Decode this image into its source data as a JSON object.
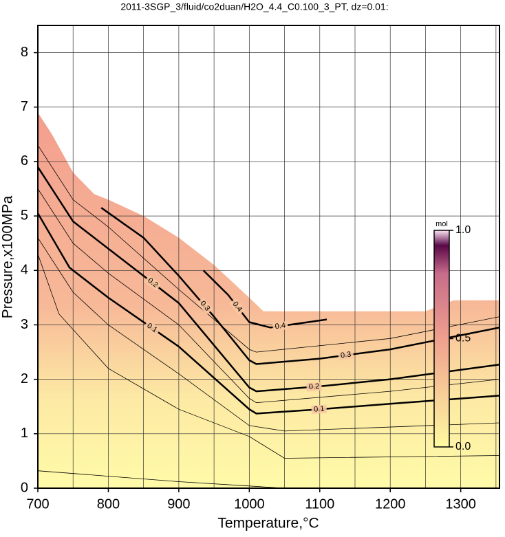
{
  "chart_data": {
    "type": "contour",
    "title": "2011-3SGP_3/fluid/co2duan/H2O_4.4_C0.100_3_PT, dz=0.01:",
    "xlabel": "Temperature,°C",
    "ylabel": "Pressure,x100MPa",
    "xlim": [
      700,
      1355
    ],
    "ylim": [
      0,
      8.5
    ],
    "xticks": [
      700,
      800,
      900,
      1000,
      1100,
      1200,
      1300
    ],
    "yticks": [
      0,
      1,
      2,
      3,
      4,
      5,
      6,
      7,
      8
    ],
    "xgrid": [
      700,
      750,
      800,
      850,
      900,
      950,
      1000,
      1050,
      1100,
      1150,
      1200,
      1250,
      1300,
      1350
    ],
    "grid": true,
    "field_boundary": {
      "x": [
        700,
        700,
        720,
        750,
        780,
        800,
        850,
        900,
        950,
        1000,
        1020,
        1100,
        1250,
        1290,
        1355,
        1355
      ],
      "y": [
        0,
        6.9,
        6.5,
        5.8,
        5.4,
        5.3,
        5.0,
        4.6,
        4.1,
        3.5,
        3.25,
        3.25,
        3.25,
        3.45,
        3.45,
        0
      ]
    },
    "contours": [
      {
        "level": 0.1,
        "x": [
          700,
          745,
          800,
          900,
          1000,
          1010,
          1100,
          1200,
          1355
        ],
        "y": [
          5.05,
          4.05,
          3.5,
          2.6,
          1.45,
          1.37,
          1.45,
          1.55,
          1.7
        ],
        "label_x": [
          862,
          1099
        ]
      },
      {
        "level": 0.2,
        "x": [
          700,
          750,
          800,
          900,
          1000,
          1010,
          1100,
          1200,
          1355
        ],
        "y": [
          5.9,
          4.9,
          4.4,
          3.4,
          1.85,
          1.78,
          1.87,
          2.0,
          2.27
        ],
        "label_x": [
          863,
          1092
        ]
      },
      {
        "level": 0.3,
        "x": [
          790,
          850,
          900,
          950,
          1000,
          1010,
          1100,
          1200,
          1355
        ],
        "y": [
          5.15,
          4.6,
          3.9,
          3.15,
          2.35,
          2.28,
          2.38,
          2.55,
          2.95
        ],
        "label_x": [
          937,
          1137
        ]
      },
      {
        "level": 0.4,
        "x": [
          935,
          970,
          1000,
          1030,
          1110
        ],
        "y": [
          4.0,
          3.55,
          3.05,
          2.95,
          3.1
        ],
        "label_x": [
          983,
          1044
        ]
      }
    ],
    "minor_contours": [
      {
        "x": [
          700,
          800,
          900,
          1000,
          1050
        ],
        "y": [
          0.32,
          0.22,
          0.12,
          0.04,
          0.0
        ]
      },
      {
        "x": [
          700,
          730,
          800,
          900,
          1000,
          1050,
          1355
        ],
        "y": [
          4.3,
          3.2,
          2.2,
          1.45,
          0.95,
          0.55,
          0.6
        ]
      },
      {
        "x": [
          700,
          750,
          800,
          900,
          1000,
          1050,
          1355
        ],
        "y": [
          4.6,
          3.6,
          3.0,
          2.1,
          1.15,
          1.05,
          1.2
        ]
      },
      {
        "x": [
          700,
          750,
          800,
          900,
          1000,
          1010,
          1200,
          1355
        ],
        "y": [
          5.5,
          4.5,
          3.95,
          3.0,
          1.65,
          1.57,
          1.78,
          2.0
        ]
      },
      {
        "x": [
          700,
          750,
          800,
          900,
          1000,
          1010,
          1200,
          1355
        ],
        "y": [
          6.3,
          5.3,
          4.8,
          3.65,
          2.55,
          2.5,
          2.75,
          3.15
        ]
      }
    ],
    "colorbar": {
      "label": "mol",
      "lim": [
        0,
        1
      ],
      "ticks": [
        {
          "value": 0,
          "label": "0.0"
        },
        {
          "value": 0.5,
          "label": "0.5"
        },
        {
          "value": 1,
          "label": "1.0"
        }
      ]
    }
  }
}
